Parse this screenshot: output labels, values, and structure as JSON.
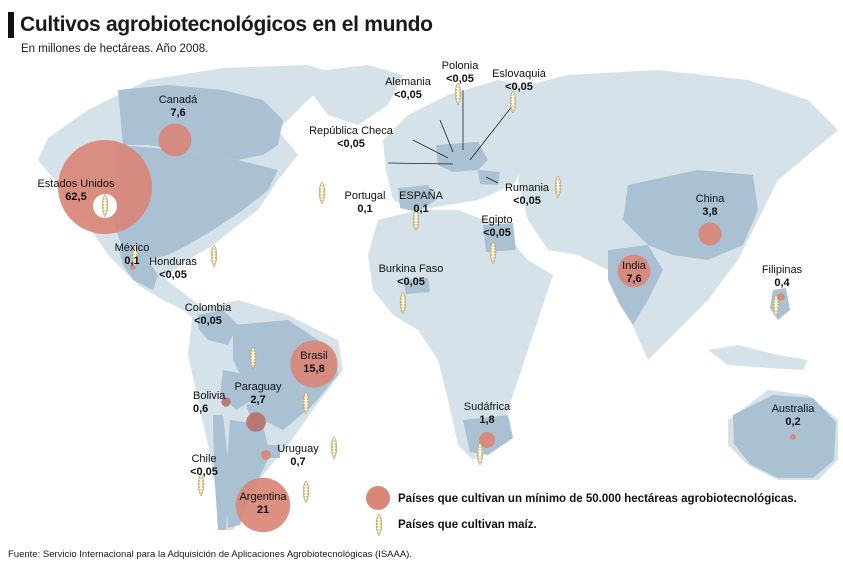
{
  "header": {
    "title": "Cultivos agrobiotecnológicos en el mundo",
    "subtitle": "En millones de hectáreas. Año 2008."
  },
  "colors": {
    "land": "#d6e2ea",
    "producer": "#a9c1d3",
    "ocean": "#ffffff",
    "bubble": "#d98777",
    "bubble_dark": "#b9726a",
    "maize": "#c9b98a"
  },
  "chart_data": {
    "type": "bubble-map",
    "unit": "millones de hectáreas",
    "countries": [
      {
        "name": "Estados Unidos",
        "value": 62.5,
        "value_label": "62,5",
        "maize": true
      },
      {
        "name": "Argentina",
        "value": 21,
        "value_label": "21",
        "maize": true
      },
      {
        "name": "Brasil",
        "value": 15.8,
        "value_label": "15,8",
        "maize": true
      },
      {
        "name": "Canadá",
        "value": 7.6,
        "value_label": "7,6",
        "maize": false
      },
      {
        "name": "India",
        "value": 7.6,
        "value_label": "7,6",
        "maize": false
      },
      {
        "name": "China",
        "value": 3.8,
        "value_label": "3,8",
        "maize": false
      },
      {
        "name": "Paraguay",
        "value": 2.7,
        "value_label": "2,7",
        "maize": true
      },
      {
        "name": "Sudáfrica",
        "value": 1.8,
        "value_label": "1,8",
        "maize": true
      },
      {
        "name": "Uruguay",
        "value": 0.7,
        "value_label": "0,7",
        "maize": true
      },
      {
        "name": "Bolivia",
        "value": 0.6,
        "value_label": "0,6",
        "maize": false
      },
      {
        "name": "Filipinas",
        "value": 0.4,
        "value_label": "0,4",
        "maize": true
      },
      {
        "name": "Australia",
        "value": 0.2,
        "value_label": "0,2",
        "maize": false
      },
      {
        "name": "México",
        "value": 0.1,
        "value_label": "0,1",
        "maize": true
      },
      {
        "name": "Portugal",
        "value": 0.1,
        "value_label": "0,1",
        "maize": true
      },
      {
        "name": "ESPAÑA",
        "value": 0.1,
        "value_label": "0,1",
        "maize": true
      },
      {
        "name": "Honduras",
        "value": null,
        "value_label": "<0,05",
        "maize": true
      },
      {
        "name": "Colombia",
        "value": null,
        "value_label": "<0,05",
        "maize": false
      },
      {
        "name": "Chile",
        "value": null,
        "value_label": "<0,05",
        "maize": true
      },
      {
        "name": "Burkina Faso",
        "value": null,
        "value_label": "<0,05",
        "maize": true
      },
      {
        "name": "Egipto",
        "value": null,
        "value_label": "<0,05",
        "maize": true
      },
      {
        "name": "Rumania",
        "value": null,
        "value_label": "<0,05",
        "maize": true
      },
      {
        "name": "República Checa",
        "value": null,
        "value_label": "<0,05",
        "maize": true
      },
      {
        "name": "Alemania",
        "value": null,
        "value_label": "<0,05",
        "maize": true
      },
      {
        "name": "Polonia",
        "value": null,
        "value_label": "<0,05",
        "maize": true
      },
      {
        "name": "Eslovaquia",
        "value": null,
        "value_label": "<0,05",
        "maize": true
      }
    ],
    "legend": [
      {
        "symbol": "bubble",
        "label": "Países que cultivan un mínimo de 50.000 hectáreas agrobiotecnológicas."
      },
      {
        "symbol": "maize",
        "label": "Países que cultivan maíz."
      }
    ]
  },
  "source": "Fuente: Servicio Internacional para la Adquisición de Aplicaciones Agrobiotecnológicas (ISAAA)."
}
